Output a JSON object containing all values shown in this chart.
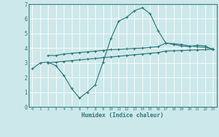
{
  "bg_color": "#cde8ea",
  "grid_color": "#b0d4d8",
  "line_color": "#2d7a7a",
  "xlabel": "Humidex (Indice chaleur)",
  "xlim": [
    -0.5,
    23.5
  ],
  "ylim": [
    0,
    7
  ],
  "xticks": [
    0,
    1,
    2,
    3,
    4,
    5,
    6,
    7,
    8,
    9,
    10,
    11,
    12,
    13,
    14,
    15,
    16,
    17,
    18,
    19,
    20,
    21,
    22,
    23
  ],
  "yticks": [
    0,
    1,
    2,
    3,
    4,
    5,
    6,
    7
  ],
  "line1_x": [
    2,
    3,
    4,
    5,
    6,
    7,
    8,
    9,
    10,
    11,
    12,
    13,
    14,
    15,
    16,
    17,
    18,
    19,
    20,
    21,
    22,
    23
  ],
  "line1_y": [
    3.5,
    3.5,
    3.6,
    3.65,
    3.7,
    3.75,
    3.8,
    3.85,
    3.9,
    3.92,
    3.95,
    3.98,
    4.0,
    4.05,
    4.1,
    4.35,
    4.3,
    4.25,
    4.15,
    4.1,
    4.05,
    3.95
  ],
  "line2_x": [
    2,
    3,
    4,
    5,
    6,
    7,
    8,
    9,
    10,
    11,
    12,
    13,
    14,
    15,
    16,
    17,
    18,
    19,
    20,
    21,
    22,
    23
  ],
  "line2_y": [
    3.0,
    3.05,
    3.1,
    3.15,
    3.2,
    3.25,
    3.3,
    3.35,
    3.4,
    3.45,
    3.5,
    3.55,
    3.6,
    3.65,
    3.7,
    3.8,
    3.82,
    3.84,
    3.86,
    3.88,
    3.9,
    3.92
  ],
  "line3_x": [
    0,
    1,
    2,
    3,
    4,
    5,
    6,
    7,
    8,
    9,
    10,
    11,
    12,
    13,
    14,
    15,
    16,
    17,
    18,
    19,
    20,
    21,
    22,
    23
  ],
  "line3_y": [
    2.6,
    3.0,
    3.05,
    2.8,
    2.15,
    1.25,
    0.6,
    1.0,
    1.5,
    3.05,
    4.65,
    5.85,
    6.1,
    6.55,
    6.75,
    6.35,
    5.2,
    4.35,
    4.25,
    4.15,
    4.1,
    4.2,
    4.15,
    3.9
  ]
}
